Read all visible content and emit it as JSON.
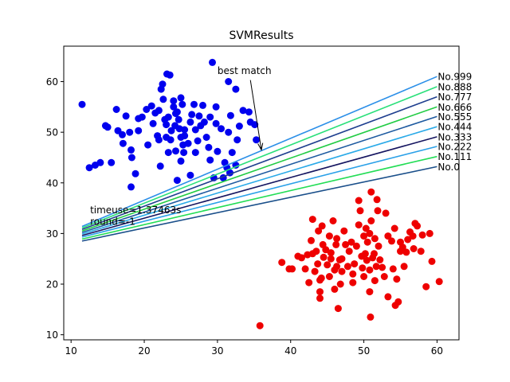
{
  "chart_data": {
    "type": "scatter",
    "title": "SVMResults",
    "xlabel": "",
    "ylabel": "",
    "xlim": [
      9,
      63
    ],
    "ylim": [
      9,
      67
    ],
    "xticks": [
      10,
      20,
      30,
      40,
      50,
      60
    ],
    "yticks": [
      10,
      20,
      30,
      40,
      50,
      60
    ],
    "grid": false,
    "annotation": {
      "text": "best match",
      "text_at": [
        30.0,
        61.5
      ],
      "arrow_from": [
        34.5,
        60.3
      ],
      "arrow_to": [
        36.0,
        46.5
      ]
    },
    "info_text": [
      {
        "text": "timeuse=1.37463s",
        "at": [
          12.6,
          34.0
        ]
      },
      {
        "text": "round=-1",
        "at": [
          12.6,
          31.7
        ]
      }
    ],
    "lines": [
      {
        "label": "No.0",
        "color": "#1a4f8a",
        "x": [
          11.5,
          60.0
        ],
        "y": [
          28.5,
          43.2
        ]
      },
      {
        "label": "No.111",
        "color": "#22dd55",
        "x": [
          11.5,
          60.0
        ],
        "y": [
          28.9,
          45.2
        ]
      },
      {
        "label": "No.222",
        "color": "#2aa0e8",
        "x": [
          11.5,
          60.0
        ],
        "y": [
          29.3,
          47.2
        ]
      },
      {
        "label": "No.333",
        "color": "#151560",
        "x": [
          11.5,
          60.0
        ],
        "y": [
          29.6,
          49.1
        ]
      },
      {
        "label": "No.444",
        "color": "#2aaae8",
        "x": [
          11.5,
          60.0
        ],
        "y": [
          29.9,
          51.1
        ]
      },
      {
        "label": "No.555",
        "color": "#1e5aa0",
        "x": [
          11.5,
          60.0
        ],
        "y": [
          30.2,
          53.1
        ]
      },
      {
        "label": "No.666",
        "color": "#22cc44",
        "x": [
          11.5,
          60.0
        ],
        "y": [
          30.5,
          55.0
        ]
      },
      {
        "label": "No.777",
        "color": "#1f3f8f",
        "x": [
          11.5,
          60.0
        ],
        "y": [
          30.8,
          57.0
        ]
      },
      {
        "label": "No.888",
        "color": "#2ae07a",
        "x": [
          11.5,
          60.0
        ],
        "y": [
          31.1,
          59.0
        ]
      },
      {
        "label": "No.999",
        "color": "#2b8fe8",
        "x": [
          11.5,
          60.0
        ],
        "y": [
          31.4,
          61.0
        ]
      }
    ],
    "series": [
      {
        "color": "#0000ee",
        "points": [
          [
            11.5,
            55.5
          ],
          [
            12.5,
            43
          ],
          [
            13.3,
            43.5
          ],
          [
            14,
            44
          ],
          [
            14.7,
            51.3
          ],
          [
            15,
            51
          ],
          [
            15.5,
            44
          ],
          [
            16.2,
            54.5
          ],
          [
            16.4,
            50.3
          ],
          [
            17,
            49.5
          ],
          [
            17.1,
            47.8
          ],
          [
            17.5,
            53.2
          ],
          [
            18,
            50
          ],
          [
            18.2,
            46.5
          ],
          [
            18.3,
            45
          ],
          [
            18.2,
            39.2
          ],
          [
            18.8,
            41.8
          ],
          [
            19.2,
            52.7
          ],
          [
            19.2,
            50.3
          ],
          [
            19.7,
            53
          ],
          [
            20.3,
            54.5
          ],
          [
            20.5,
            47.5
          ],
          [
            21,
            55.2
          ],
          [
            21.2,
            51.7
          ],
          [
            21.5,
            53.8
          ],
          [
            21.8,
            49.3
          ],
          [
            22,
            54.3
          ],
          [
            22,
            48.5
          ],
          [
            22.2,
            43.3
          ],
          [
            22.3,
            58.5
          ],
          [
            22.5,
            59.5
          ],
          [
            22.6,
            56.5
          ],
          [
            22.8,
            52.5
          ],
          [
            23,
            49
          ],
          [
            23,
            51.5
          ],
          [
            23.1,
            61.5
          ],
          [
            23.3,
            53
          ],
          [
            23.3,
            46
          ],
          [
            23.5,
            61.3
          ],
          [
            23.6,
            48.5
          ],
          [
            23.7,
            50.3
          ],
          [
            24,
            56.2
          ],
          [
            24,
            55
          ],
          [
            24.2,
            51.3
          ],
          [
            24.3,
            53.7
          ],
          [
            24.3,
            46.3
          ],
          [
            24.5,
            54
          ],
          [
            24.5,
            40.5
          ],
          [
            24.7,
            52.5
          ],
          [
            24.8,
            50.7
          ],
          [
            25,
            56.8
          ],
          [
            25,
            49
          ],
          [
            25,
            44.3
          ],
          [
            25.2,
            55.5
          ],
          [
            25.3,
            47.5
          ],
          [
            25.4,
            46
          ],
          [
            25.5,
            49.3
          ],
          [
            25.5,
            50.5
          ],
          [
            26,
            47.8
          ],
          [
            26.3,
            52
          ],
          [
            26.3,
            41.5
          ],
          [
            26.5,
            53.5
          ],
          [
            26.8,
            55.5
          ],
          [
            27,
            50.5
          ],
          [
            27,
            46
          ],
          [
            27.3,
            48.3
          ],
          [
            27.5,
            53.2
          ],
          [
            27.7,
            51.3
          ],
          [
            28,
            55.3
          ],
          [
            28.2,
            52
          ],
          [
            28.5,
            49
          ],
          [
            28.8,
            47
          ],
          [
            29,
            53
          ],
          [
            29,
            44.5
          ],
          [
            29.3,
            63.8
          ],
          [
            29.5,
            41
          ],
          [
            29.8,
            55
          ],
          [
            29.8,
            51.7
          ],
          [
            30,
            46.2
          ],
          [
            30.5,
            50.7
          ],
          [
            30.8,
            41
          ],
          [
            31,
            44
          ],
          [
            31.3,
            43
          ],
          [
            31.5,
            60
          ],
          [
            31.5,
            50
          ],
          [
            31.7,
            42
          ],
          [
            31.8,
            53.3
          ],
          [
            32,
            46
          ],
          [
            32.5,
            58.5
          ],
          [
            32.5,
            43.5
          ],
          [
            32.7,
            48.5
          ],
          [
            33,
            51.2
          ],
          [
            33.5,
            54.3
          ],
          [
            34.3,
            54
          ],
          [
            34.5,
            52
          ],
          [
            35.1,
            51.5
          ],
          [
            35.3,
            48.5
          ]
        ]
      },
      {
        "color": "#ee0000",
        "points": [
          [
            35.8,
            11.8
          ],
          [
            38.8,
            24.3
          ],
          [
            39.8,
            23
          ],
          [
            40.2,
            23
          ],
          [
            41,
            25.5
          ],
          [
            41.5,
            25.2
          ],
          [
            42,
            23
          ],
          [
            42.3,
            25.8
          ],
          [
            42.5,
            20.3
          ],
          [
            42.8,
            28.6
          ],
          [
            43,
            32.8
          ],
          [
            43,
            26
          ],
          [
            43.3,
            22.5
          ],
          [
            43.5,
            26.5
          ],
          [
            43.7,
            24
          ],
          [
            43.8,
            30.5
          ],
          [
            44,
            20.8
          ],
          [
            44,
            18.5
          ],
          [
            44,
            17.2
          ],
          [
            44.2,
            21.2
          ],
          [
            44.3,
            31.5
          ],
          [
            44.4,
            27.8
          ],
          [
            44.5,
            25.3
          ],
          [
            44.8,
            26.8
          ],
          [
            45,
            23.8
          ],
          [
            45.3,
            29.5
          ],
          [
            45.3,
            21.5
          ],
          [
            45.5,
            26.2
          ],
          [
            45.5,
            25
          ],
          [
            45.8,
            32.5
          ],
          [
            46,
            22.8
          ],
          [
            46,
            19
          ],
          [
            46.2,
            27.8
          ],
          [
            46.3,
            23.5
          ],
          [
            46.3,
            29
          ],
          [
            46.5,
            15.2
          ],
          [
            46.7,
            24.8
          ],
          [
            46.8,
            20
          ],
          [
            47,
            22.5
          ],
          [
            47,
            25
          ],
          [
            47.3,
            30.5
          ],
          [
            47.5,
            27.8
          ],
          [
            47.8,
            23.5
          ],
          [
            48,
            26.5
          ],
          [
            48.3,
            28.3
          ],
          [
            48.5,
            20.3
          ],
          [
            48.5,
            22
          ],
          [
            48.7,
            24
          ],
          [
            49,
            27.5
          ],
          [
            49.3,
            31.7
          ],
          [
            49.3,
            36.5
          ],
          [
            49.5,
            34.5
          ],
          [
            49.7,
            25.5
          ],
          [
            49.8,
            23.2
          ],
          [
            50,
            29.5
          ],
          [
            50,
            21.5
          ],
          [
            50.2,
            26
          ],
          [
            50.3,
            31
          ],
          [
            50.4,
            24.7
          ],
          [
            50.5,
            28.3
          ],
          [
            50.8,
            30
          ],
          [
            50.8,
            22.8
          ],
          [
            50.8,
            18.5
          ],
          [
            50.9,
            13.5
          ],
          [
            51,
            38.2
          ],
          [
            51,
            32.5
          ],
          [
            51.2,
            25.2
          ],
          [
            51.4,
            26
          ],
          [
            51.5,
            29
          ],
          [
            51.5,
            20.7
          ],
          [
            51.7,
            23.5
          ],
          [
            51.8,
            36.7
          ],
          [
            51.9,
            34.5
          ],
          [
            52,
            27.5
          ],
          [
            52.2,
            24.8
          ],
          [
            52.5,
            23.3
          ],
          [
            52.8,
            21.5
          ],
          [
            53,
            34
          ],
          [
            53.3,
            29.5
          ],
          [
            53.3,
            17.5
          ],
          [
            53.8,
            28.5
          ],
          [
            54,
            23
          ],
          [
            54.2,
            31
          ],
          [
            54.3,
            15.8
          ],
          [
            54.5,
            21
          ],
          [
            54.7,
            16.5
          ],
          [
            55,
            28.3
          ],
          [
            55,
            26.5
          ],
          [
            55.3,
            27.3
          ],
          [
            55.5,
            23.5
          ],
          [
            55.8,
            26.3
          ],
          [
            56,
            28.8
          ],
          [
            56.3,
            30.3
          ],
          [
            56.7,
            29.5
          ],
          [
            56.8,
            27
          ],
          [
            57,
            32
          ],
          [
            57.3,
            31.5
          ],
          [
            57.8,
            26.5
          ],
          [
            58,
            29.7
          ],
          [
            58.5,
            19.5
          ],
          [
            59,
            30
          ],
          [
            59.3,
            24.5
          ],
          [
            60.3,
            20.5
          ]
        ]
      }
    ]
  }
}
